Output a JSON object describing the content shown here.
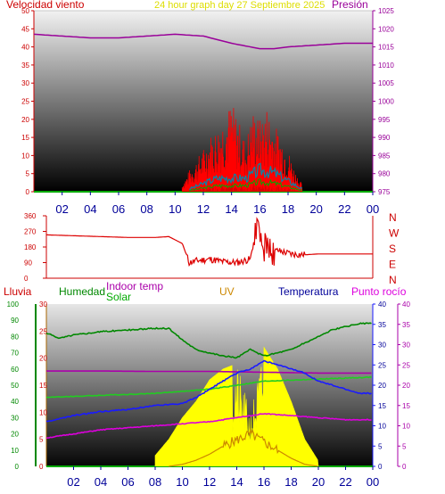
{
  "colors": {
    "wind": "#ff0000",
    "wind_dark": "#cc0000",
    "wind_teal": "#0088aa",
    "wind_green": "#00aa00",
    "pressure": "#990099",
    "direction": "#dd0000",
    "humidity": "#008800",
    "temp": "#1a1aff",
    "indoor": "#aa00aa",
    "dew": "#dd00dd",
    "solar": "#ffff00",
    "uv": "#cc8800",
    "label_red": "#cc0000",
    "label_gold": "#dddd00",
    "label_navy": "#000099"
  },
  "chart_data": [
    {
      "type": "line",
      "title": "24 hour graph day 27 Septiembre 2025",
      "left_axis_label": "Velocidad viento",
      "right_axis_label": "Presión",
      "xlabel": "",
      "ylabel": "",
      "x_ticks": [
        "02",
        "04",
        "06",
        "08",
        "10",
        "12",
        "14",
        "16",
        "18",
        "20",
        "22",
        "00"
      ],
      "y_ticks_left": [
        "0",
        "5",
        "10",
        "15",
        "20",
        "25",
        "30",
        "35",
        "40",
        "45",
        "50"
      ],
      "y_ticks_right": [
        "975",
        "980",
        "985",
        "990",
        "995",
        "1000",
        "1005",
        "1010",
        "1015",
        "1020",
        "1025"
      ],
      "ylim_left": [
        0,
        50
      ],
      "ylim_right": [
        975,
        1025
      ],
      "grid": false,
      "series": [
        {
          "axis": "left",
          "kind": "gust",
          "hour": [
            10.5,
            11,
            11.5,
            12,
            12.5,
            13,
            13.5,
            14,
            14.5,
            15,
            15.5,
            16,
            16.5,
            17,
            17.5,
            18,
            18.5,
            19
          ],
          "value": [
            2,
            6,
            9,
            12,
            16,
            18,
            22,
            25,
            20,
            14,
            23,
            20,
            24,
            19,
            16,
            12,
            6,
            2
          ]
        },
        {
          "axis": "left",
          "kind": "avg",
          "hour": [
            11,
            12,
            13,
            14,
            15,
            16,
            17,
            18,
            19
          ],
          "value": [
            1,
            3,
            5,
            5,
            5,
            8,
            7,
            4,
            1
          ]
        },
        {
          "axis": "right",
          "kind": "pressure",
          "hour": [
            0,
            2,
            4,
            6,
            8,
            10,
            12,
            14,
            16,
            17,
            18,
            20,
            22,
            24
          ],
          "value": [
            1018.5,
            1018,
            1017.5,
            1017.5,
            1018,
            1018.5,
            1018,
            1016,
            1014.5,
            1014.5,
            1015,
            1015.5,
            1016,
            1016
          ]
        }
      ]
    },
    {
      "type": "line",
      "title": "",
      "xlabel": "",
      "ylabel": "",
      "y_ticks": [
        "360",
        "270",
        "180",
        "90",
        "0"
      ],
      "ylim": [
        0,
        360
      ],
      "right_letters": [
        "N",
        "W",
        "S",
        "E",
        "N"
      ],
      "series": [
        {
          "kind": "direction",
          "hour": [
            0,
            2,
            4,
            6,
            8,
            9,
            10,
            10.5,
            11,
            12,
            13,
            14,
            15,
            15.5,
            16,
            16.5,
            17,
            18,
            19,
            20,
            22,
            24
          ],
          "value": [
            250,
            245,
            240,
            235,
            235,
            240,
            200,
            90,
            100,
            110,
            95,
            90,
            110,
            320,
            180,
            150,
            160,
            140,
            135,
            140,
            140,
            140
          ]
        }
      ]
    },
    {
      "type": "line",
      "title": "",
      "xlabel": "",
      "ylabel": "",
      "x_ticks": [
        "02",
        "04",
        "06",
        "08",
        "10",
        "12",
        "14",
        "16",
        "18",
        "20",
        "22",
        "00"
      ],
      "header_labels": {
        "rain": "Lluvia",
        "humidity": "Humedad",
        "indoor": "Indoor temp",
        "solar": "Solar",
        "uv": "UV",
        "temp": "Temperatura",
        "dew": "Punto rocío"
      },
      "y_ticks_rain": [
        "0",
        "10",
        "20",
        "30",
        "40",
        "50",
        "60",
        "70",
        "80",
        "90",
        "100"
      ],
      "y_ticks_solar": [
        "0",
        "5",
        "10",
        "15",
        "20",
        "25",
        "30"
      ],
      "y_ticks_temp": [
        "0",
        "5",
        "10",
        "15",
        "20",
        "25",
        "30",
        "35",
        "40"
      ],
      "y_ticks_dew": [
        "0",
        "5",
        "10",
        "15",
        "20",
        "25",
        "30",
        "35",
        "40"
      ],
      "ylim_humidity": [
        0,
        100
      ],
      "ylim_temp": [
        0,
        40
      ],
      "series": [
        {
          "kind": "humidity",
          "hour": [
            0,
            1,
            2,
            4,
            6,
            8,
            9,
            10,
            11,
            12,
            13,
            14,
            15,
            16,
            17,
            18,
            19,
            20,
            21,
            22,
            23,
            24
          ],
          "value": [
            82,
            79,
            81,
            83,
            84,
            85,
            85,
            78,
            72,
            70,
            68,
            67,
            72,
            68,
            70,
            72,
            76,
            80,
            84,
            86,
            88,
            88
          ]
        },
        {
          "kind": "indoor",
          "hour": [
            0,
            4,
            8,
            12,
            16,
            20,
            24
          ],
          "value": [
            23.5,
            23.5,
            23.4,
            23.4,
            23.2,
            23.0,
            23.0
          ]
        },
        {
          "kind": "temp",
          "hour": [
            0,
            2,
            4,
            6,
            8,
            10,
            11,
            12,
            13,
            14,
            15,
            16,
            17,
            18,
            19,
            20,
            21,
            22,
            23,
            24
          ],
          "value": [
            11,
            12.5,
            13.5,
            14,
            15,
            15.5,
            17,
            19,
            21,
            23,
            24,
            26,
            25,
            24,
            23,
            21,
            20,
            19,
            18,
            18
          ]
        },
        {
          "kind": "dew",
          "hour": [
            0,
            2,
            4,
            6,
            8,
            10,
            12,
            14,
            16,
            18,
            20,
            22,
            24
          ],
          "value": [
            7,
            8,
            9,
            9.5,
            10,
            10.5,
            11,
            12,
            13,
            12.5,
            12,
            11.5,
            11.5
          ]
        },
        {
          "kind": "outside_b",
          "hour": [
            0,
            4,
            8,
            12,
            16,
            20,
            24
          ],
          "value": [
            17,
            17.5,
            18,
            19,
            21,
            21.5,
            22
          ]
        },
        {
          "kind": "solar",
          "hour": [
            8,
            9,
            10,
            11,
            12,
            13,
            14,
            15,
            16,
            17,
            18,
            19,
            20
          ],
          "value": [
            2,
            5,
            9,
            12,
            16,
            18,
            19,
            10,
            22,
            18,
            12,
            5,
            1
          ]
        },
        {
          "kind": "uv",
          "hour": [
            9,
            10,
            11,
            12,
            13,
            14,
            15,
            16,
            17,
            18,
            19,
            20
          ],
          "value": [
            0,
            0.5,
            1.5,
            3,
            5,
            6.5,
            8,
            6,
            4,
            2,
            0.5,
            0
          ]
        }
      ]
    }
  ]
}
